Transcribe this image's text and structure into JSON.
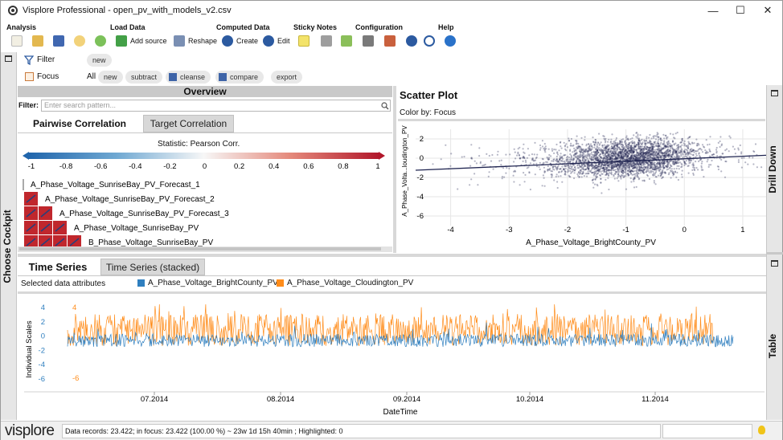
{
  "window": {
    "title": "Visplore Professional - open_pv_with_models_v2.csv",
    "minimize": "—",
    "maximize": "☐",
    "close": "✕"
  },
  "menu": {
    "groups": [
      {
        "title": "Analysis"
      },
      {
        "title": "Load Data",
        "add_source": "Add source",
        "reshape": "Reshape"
      },
      {
        "title": "Computed Data",
        "create": "Create",
        "edit": "Edit"
      },
      {
        "title": "Sticky Notes"
      },
      {
        "title": "Configuration"
      },
      {
        "title": "Help"
      }
    ]
  },
  "left_strip": {
    "label": "Choose Cockpit"
  },
  "right_strip": {
    "top_label": "Drill Down",
    "bottom_label": "Table"
  },
  "filters": {
    "filter_label": "Filter",
    "filter_new": "new",
    "focus_label": "Focus",
    "focus_all": "All",
    "focus_new": "new",
    "focus_subtract": "subtract",
    "focus_cleanse": "cleanse",
    "focus_compare": "compare",
    "focus_export": "export"
  },
  "overview": {
    "header": "Overview",
    "filter_label": "Filter:",
    "search_placeholder": "Enter search pattern...",
    "tabs": [
      {
        "label": "Pairwise Correlation"
      },
      {
        "label": "Target Correlation"
      }
    ],
    "statistic": "Statistic: Pearson Corr.",
    "scale_ticks": [
      "-1",
      "-0.8",
      "-0.6",
      "-0.4",
      "-0.2",
      "0",
      "0.2",
      "0.4",
      "0.6",
      "0.8",
      "1"
    ],
    "attributes": [
      "A_Phase_Voltage_SunriseBay_PV_Forecast_1",
      "A_Phase_Voltage_SunriseBay_PV_Forecast_2",
      "A_Phase_Voltage_SunriseBay_PV_Forecast_3",
      "A_Phase_Voltage_SunriseBay_PV",
      "B_Phase_Voltage_SunriseBay_PV"
    ]
  },
  "scatter": {
    "title": "Scatter Plot",
    "color_by": "Color by: Focus",
    "x_label": "A_Phase_Voltage_BrightCounty_PV",
    "y_label": "A_Phase_Volta...loudington_PV",
    "x_ticks": [
      "-4",
      "-3",
      "-2",
      "-1",
      "0",
      "1"
    ],
    "y_ticks": [
      "2",
      "0",
      "-2",
      "-4",
      "-6"
    ]
  },
  "timeseries": {
    "tabs": [
      {
        "label": "Time Series"
      },
      {
        "label": "Time Series (stacked)"
      }
    ],
    "selected_label": "Selected data attributes",
    "legend": [
      {
        "name": "A_Phase_Voltage_BrightCounty_PV",
        "color": "#2f7fbf"
      },
      {
        "name": "A_Phase_Voltage_Cloudington_PV",
        "color": "#ff8c1a"
      }
    ],
    "y_label": "Individual Scales",
    "blue_ticks": [
      "4",
      "2",
      "0",
      "-2",
      "-4",
      "-6"
    ],
    "orange_ticks": [
      "4",
      "-6"
    ],
    "x_label": "DateTime",
    "x_ticks": [
      "07.2014",
      "08.2014",
      "09.2014",
      "10.2014",
      "11.2014"
    ]
  },
  "status": {
    "logo": "visplore",
    "text": "Data records: 23.422; in focus: 23.422 (100.00 %) ~ 23w 1d 15h 40min ; Highlighted: 0"
  }
}
